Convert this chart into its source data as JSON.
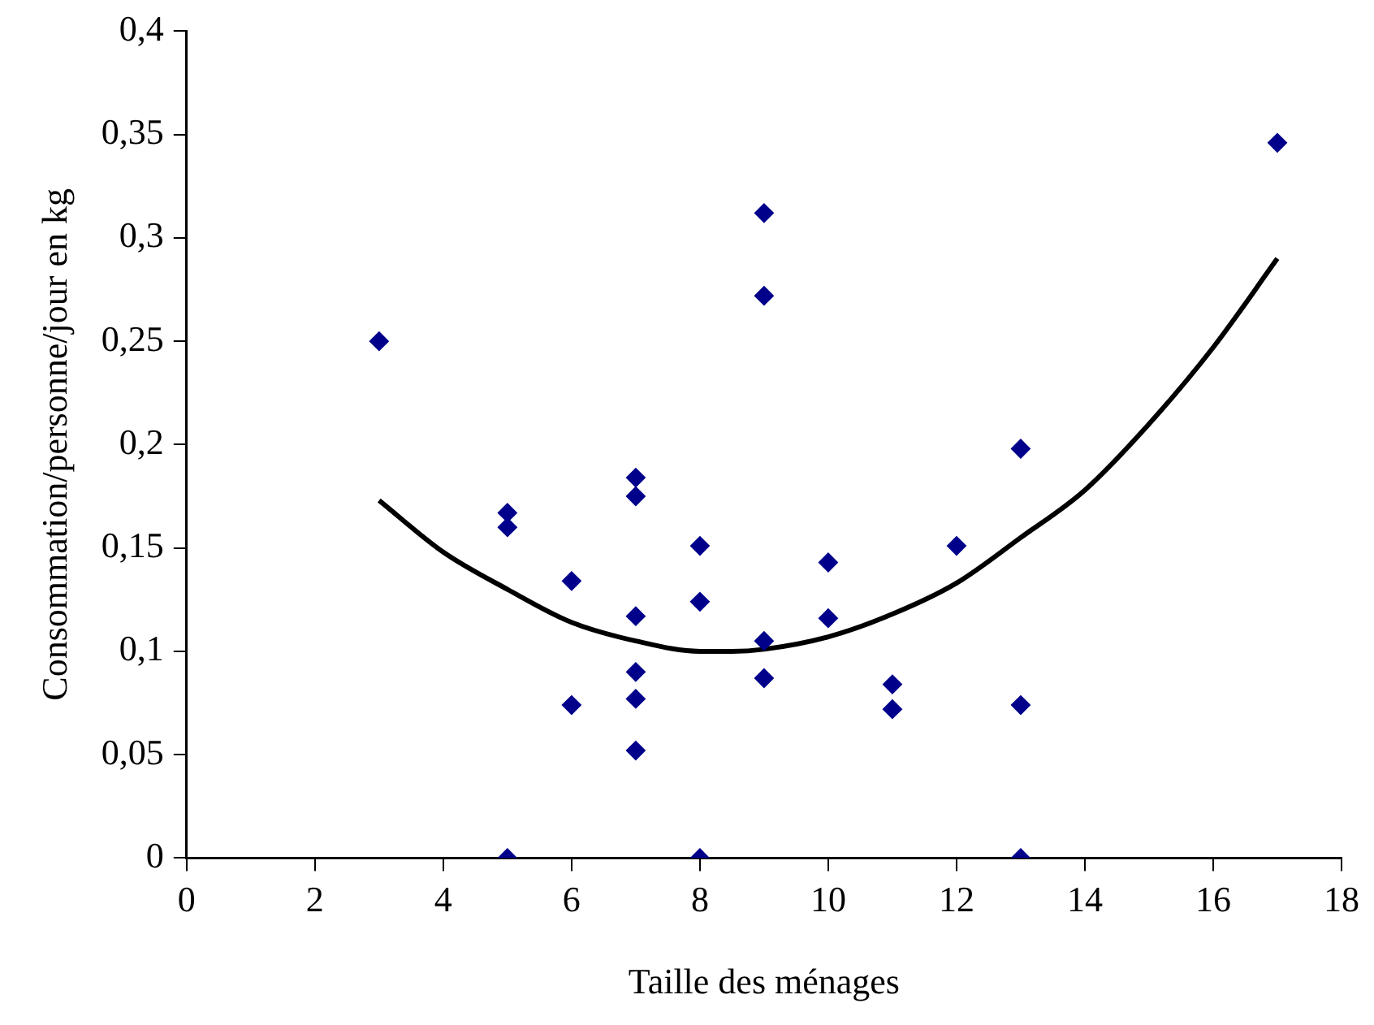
{
  "chart_data": {
    "type": "scatter",
    "xlabel": "Taille des ménages",
    "ylabel": "Consommation/personne/jour en kg",
    "xlim": [
      0,
      18
    ],
    "xticks": [
      0,
      2,
      4,
      6,
      8,
      10,
      12,
      14,
      16,
      18
    ],
    "ylim": [
      0,
      0.4
    ],
    "yticks": [
      0,
      {
        "value": 0.05,
        "label": "0,05"
      },
      {
        "value": 0.1,
        "label": "0,1"
      },
      {
        "value": 0.15,
        "label": "0,15"
      },
      {
        "value": 0.2,
        "label": "0,2"
      },
      {
        "value": 0.25,
        "label": "0,25"
      },
      {
        "value": 0.3,
        "label": "0,3"
      },
      {
        "value": 0.35,
        "label": "0,35"
      },
      {
        "value": 0.4,
        "label": "0,4"
      }
    ],
    "grid": false,
    "marker": "diamond",
    "series": [
      {
        "color": "#00008b",
        "x": [
          3,
          5,
          5,
          5,
          6,
          6,
          7,
          7,
          7,
          7,
          7,
          7,
          8,
          8,
          8,
          9,
          9,
          9,
          9,
          10,
          10,
          11,
          11,
          12,
          13,
          13,
          13,
          17
        ],
        "values": [
          0.25,
          0.167,
          0.16,
          0,
          0.134,
          0.074,
          0.184,
          0.175,
          0.117,
          0.09,
          0.077,
          0.052,
          0.151,
          0.124,
          0,
          0.312,
          0.272,
          0.105,
          0.087,
          0.143,
          0.116,
          0.084,
          0.072,
          0.151,
          0.198,
          0.074,
          0,
          0.346
        ]
      },
      {
        "type": "line",
        "color": "#000000",
        "marker": "none",
        "x": [
          3,
          4,
          5,
          6,
          7,
          8,
          8.5,
          9,
          10,
          11,
          12,
          13,
          14,
          15,
          16,
          17
        ],
        "values": [
          0.173,
          0.148,
          0.13,
          0.114,
          0.105,
          0.1,
          0.1,
          0.101,
          0.107,
          0.118,
          0.133,
          0.155,
          0.178,
          0.21,
          0.247,
          0.29
        ]
      }
    ]
  }
}
